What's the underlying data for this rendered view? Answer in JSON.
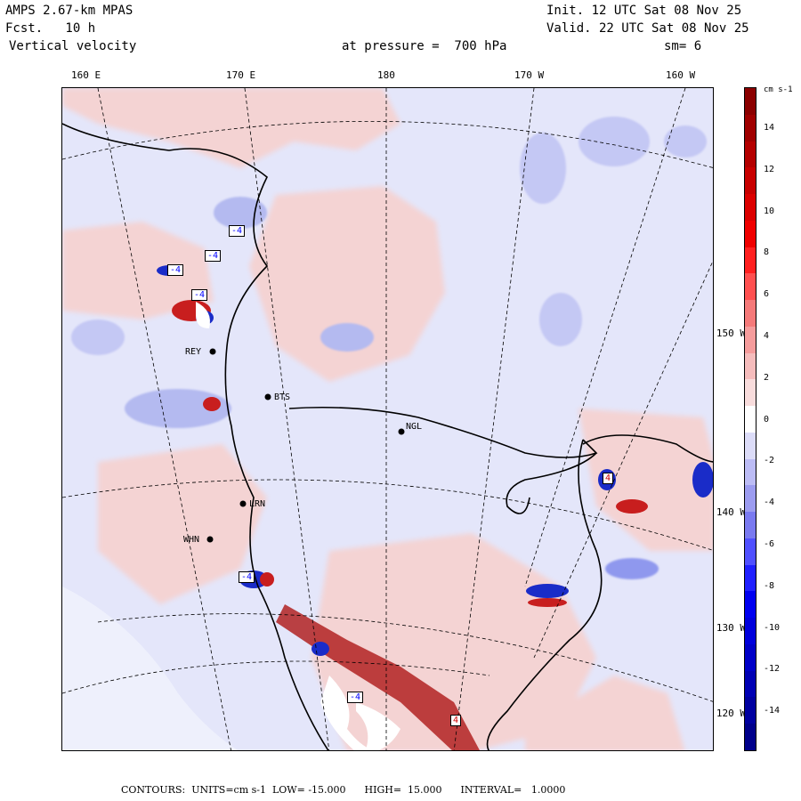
{
  "header": {
    "model": "AMPS 2.67-km MPAS",
    "forecast": "Fcst.   10 h",
    "variable": "Vertical velocity",
    "init": "Init. 12 UTC Sat 08 Nov 25",
    "valid": "Valid. 22 UTC Sat 08 Nov 25",
    "pressure": "at pressure =  700 hPa",
    "smoothing": "sm= 6"
  },
  "map": {
    "lon_labels": [
      "160 E",
      "170 E",
      "180",
      "170 W",
      "160 W"
    ],
    "lat_labels": [
      "150 W",
      "140 W",
      "130 W",
      "120 W"
    ],
    "stations": [
      {
        "id": "REY",
        "label": "REY"
      },
      {
        "id": "BTS",
        "label": "BTS"
      },
      {
        "id": "NGL",
        "label": "NGL"
      },
      {
        "id": "LRN",
        "label": "LRN"
      },
      {
        "id": "WHN",
        "label": "WHN"
      }
    ],
    "contour_marks": [
      "-4",
      "-4",
      "-4",
      "-4",
      "4",
      "-4",
      "-4",
      "4"
    ],
    "colors": {
      "background": "#e4e6fa",
      "pos_light": "#f4d3d3",
      "pos_mid": "#ec9a9a",
      "pos_strong": "#c81e1e",
      "neg_mid": "#8f98ee",
      "neg_strong": "#1a2cc8",
      "coast": "#000000"
    }
  },
  "colorbar": {
    "unit": "cm s-1",
    "ticks": [
      "14",
      "12",
      "10",
      "8",
      "6",
      "4",
      "2",
      "0",
      "-2",
      "-4",
      "-6",
      "-8",
      "-10",
      "-12",
      "-14"
    ],
    "colors": [
      "#8b0000",
      "#a00000",
      "#b40000",
      "#c80000",
      "#dc0000",
      "#f00000",
      "#ff2020",
      "#ff5050",
      "#f57a7a",
      "#f59c9c",
      "#f5bcbc",
      "#f8dcdc",
      "#ffffff",
      "#dcdcf8",
      "#bcbcf5",
      "#9c9cf0",
      "#7a7af0",
      "#5050ff",
      "#2020ff",
      "#0000f0",
      "#0000dc",
      "#0000c8",
      "#0000b4",
      "#0000a0",
      "#00008b"
    ]
  },
  "footer": {
    "text": "CONTOURS:  UNITS=cm s-1  LOW= -15.000      HIGH=  15.000      INTERVAL=   1.0000"
  }
}
